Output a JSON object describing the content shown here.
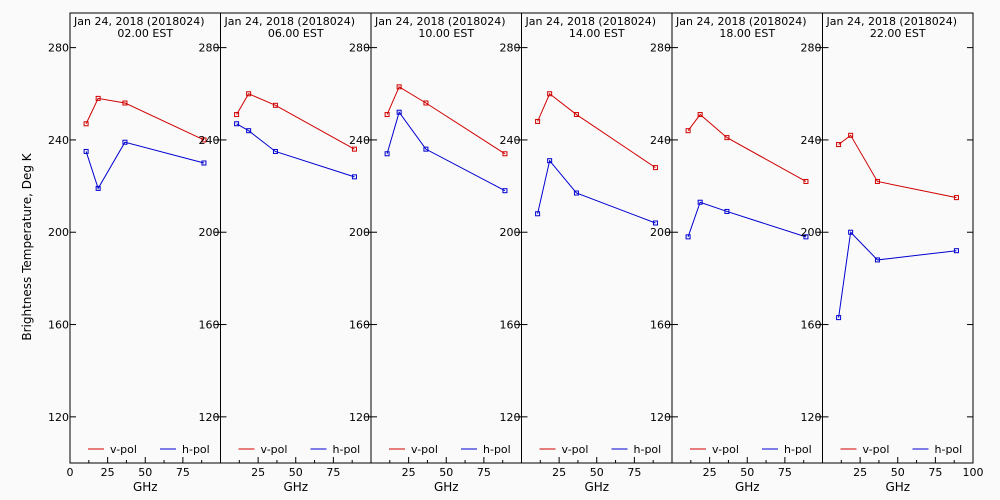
{
  "ylabel": "Brightness Temperature, Deg K",
  "chart_data": [
    {
      "type": "line",
      "title": "Jan 24, 2018 (2018024)",
      "subtitle": "02.00 EST",
      "xlabel": "GHz",
      "xlim": [
        0,
        100
      ],
      "ylim": [
        100,
        295
      ],
      "yticks": [
        120,
        160,
        200,
        240,
        280
      ],
      "xticks": [
        0,
        25,
        50,
        75
      ],
      "x": [
        10.7,
        18.7,
        36.5,
        89.0
      ],
      "series": [
        {
          "name": "v-pol",
          "color": "#d00000",
          "values": [
            247,
            258,
            256,
            240
          ]
        },
        {
          "name": "h-pol",
          "color": "#0000d0",
          "values": [
            235,
            219,
            239,
            230
          ]
        }
      ]
    },
    {
      "type": "line",
      "title": "Jan 24, 2018 (2018024)",
      "subtitle": "06.00 EST",
      "xlabel": "GHz",
      "xlim": [
        0,
        100
      ],
      "ylim": [
        100,
        295
      ],
      "yticks": [
        120,
        160,
        200,
        240,
        280
      ],
      "xticks": [
        25,
        50,
        75
      ],
      "x": [
        10.7,
        18.7,
        36.5,
        89.0
      ],
      "series": [
        {
          "name": "v-pol",
          "color": "#d00000",
          "values": [
            251,
            260,
            255,
            236
          ]
        },
        {
          "name": "h-pol",
          "color": "#0000d0",
          "values": [
            247,
            244,
            235,
            224
          ]
        }
      ]
    },
    {
      "type": "line",
      "title": "Jan 24, 2018 (2018024)",
      "subtitle": "10.00 EST",
      "xlabel": "GHz",
      "xlim": [
        0,
        100
      ],
      "ylim": [
        100,
        295
      ],
      "yticks": [
        120,
        160,
        200,
        240,
        280
      ],
      "xticks": [
        25,
        50,
        75
      ],
      "x": [
        10.7,
        18.7,
        36.5,
        89.0
      ],
      "series": [
        {
          "name": "v-pol",
          "color": "#d00000",
          "values": [
            251,
            263,
            256,
            234
          ]
        },
        {
          "name": "h-pol",
          "color": "#0000d0",
          "values": [
            234,
            252,
            236,
            218
          ]
        }
      ]
    },
    {
      "type": "line",
      "title": "Jan 24, 2018 (2018024)",
      "subtitle": "14.00 EST",
      "xlabel": "GHz",
      "xlim": [
        0,
        100
      ],
      "ylim": [
        100,
        295
      ],
      "yticks": [
        120,
        160,
        200,
        240,
        280
      ],
      "xticks": [
        25,
        50,
        75
      ],
      "x": [
        10.7,
        18.7,
        36.5,
        89.0
      ],
      "series": [
        {
          "name": "v-pol",
          "color": "#d00000",
          "values": [
            248,
            260,
            251,
            228
          ]
        },
        {
          "name": "h-pol",
          "color": "#0000d0",
          "values": [
            208,
            231,
            217,
            204
          ]
        }
      ]
    },
    {
      "type": "line",
      "title": "Jan 24, 2018 (2018024)",
      "subtitle": "18.00 EST",
      "xlabel": "GHz",
      "xlim": [
        0,
        100
      ],
      "ylim": [
        100,
        295
      ],
      "yticks": [
        120,
        160,
        200,
        240,
        280
      ],
      "xticks": [
        25,
        50,
        75
      ],
      "x": [
        10.7,
        18.7,
        36.5,
        89.0
      ],
      "series": [
        {
          "name": "v-pol",
          "color": "#d00000",
          "values": [
            244,
            251,
            241,
            222
          ]
        },
        {
          "name": "h-pol",
          "color": "#0000d0",
          "values": [
            198,
            213,
            209,
            198
          ]
        }
      ]
    },
    {
      "type": "line",
      "title": "Jan 24, 2018 (2018024)",
      "subtitle": "22.00 EST",
      "xlabel": "GHz",
      "xlim": [
        0,
        100
      ],
      "ylim": [
        100,
        295
      ],
      "yticks": [
        120,
        160,
        200,
        240,
        280
      ],
      "xticks": [
        25,
        50,
        75,
        100
      ],
      "x": [
        10.7,
        18.7,
        36.5,
        89.0
      ],
      "series": [
        {
          "name": "v-pol",
          "color": "#d00000",
          "values": [
            238,
            242,
            222,
            215
          ]
        },
        {
          "name": "h-pol",
          "color": "#0000d0",
          "values": [
            163,
            200,
            188,
            192
          ]
        }
      ]
    }
  ]
}
